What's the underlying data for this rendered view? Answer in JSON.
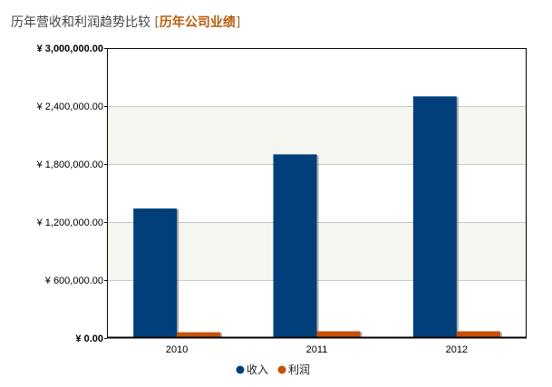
{
  "header": {
    "title": "历年营收和利润趋势比较",
    "bracket_open": "[",
    "link_text": "历年公司业绩",
    "bracket_close": "]"
  },
  "chart_data": {
    "type": "bar",
    "title": "",
    "xlabel": "",
    "ylabel": "",
    "categories": [
      "2010",
      "2011",
      "2012"
    ],
    "series": [
      {
        "name": "收入",
        "color": "#003f7a",
        "values": [
          1340000,
          1900000,
          2500000
        ]
      },
      {
        "name": "利润",
        "color": "#c8500a",
        "values": [
          60000,
          70000,
          70000
        ]
      }
    ],
    "ylim": [
      0,
      3000000
    ],
    "yticks": [
      {
        "value": 0,
        "label": "¥ 0.00"
      },
      {
        "value": 600000,
        "label": "¥ 600,000.00"
      },
      {
        "value": 1200000,
        "label": "¥ 1,200,000.00"
      },
      {
        "value": 1800000,
        "label": "¥ 1,800,000.00"
      },
      {
        "value": 2400000,
        "label": "¥ 2,400,000.00"
      },
      {
        "value": 3000000,
        "label": "¥ 3,000,000.00"
      }
    ],
    "grid": true,
    "alternating_bands": true,
    "legend_position": "bottom-center"
  }
}
